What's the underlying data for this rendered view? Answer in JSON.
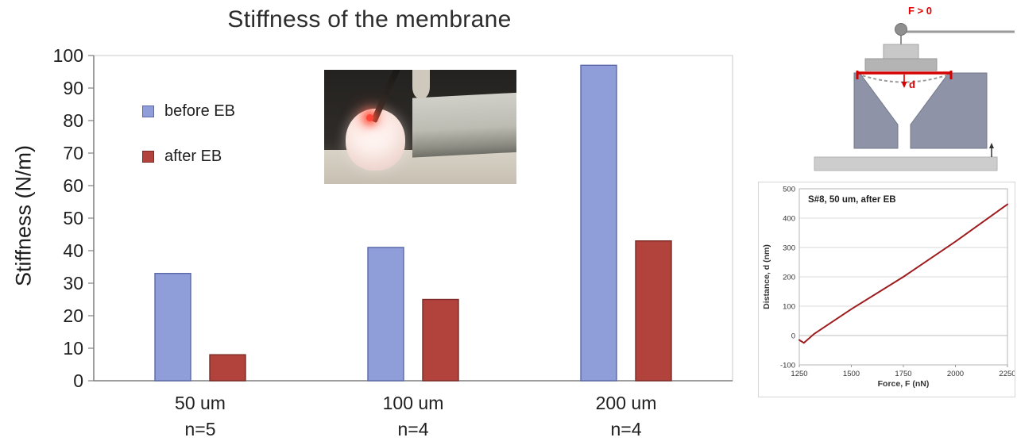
{
  "chart_data": [
    {
      "type": "bar",
      "title": "Stiffness of the membrane",
      "xlabel": "",
      "ylabel": "Stiffness (N/m)",
      "ylim": [
        0,
        100
      ],
      "ytick_step": 10,
      "grid": false,
      "legend_position": "inside-top-left",
      "categories": [
        "50 um",
        "100 um",
        "200 um"
      ],
      "category_counts": [
        "n=5",
        "n=4",
        "n=4"
      ],
      "series": [
        {
          "name": "before EB",
          "values": [
            33,
            41,
            97
          ],
          "color": "#8f9ed9",
          "border_color": "#5a68a8"
        },
        {
          "name": "after EB",
          "values": [
            8,
            25,
            43
          ],
          "color": "#b2423c",
          "border_color": "#7c2a26"
        }
      ]
    },
    {
      "type": "line",
      "annotation": "S#8, 50 um, after EB",
      "xlabel": "Force, F (nN)",
      "ylabel": "Distance, d (nm)",
      "xlim": [
        1250,
        2250
      ],
      "ylim": [
        -100,
        500
      ],
      "xticks": [
        1250,
        1500,
        1750,
        2000,
        2250
      ],
      "yticks": [
        500,
        400,
        300,
        200,
        100,
        0,
        -100
      ],
      "grid": "horizontal",
      "line_color": "#9e1c1e",
      "points": [
        [
          1250,
          -15
        ],
        [
          1272,
          -25
        ],
        [
          1320,
          5
        ],
        [
          1500,
          90
        ],
        [
          1750,
          200
        ],
        [
          2000,
          320
        ],
        [
          2250,
          447
        ]
      ]
    }
  ],
  "diagram": {
    "force_label": "F > 0",
    "deflection_label": "d"
  }
}
